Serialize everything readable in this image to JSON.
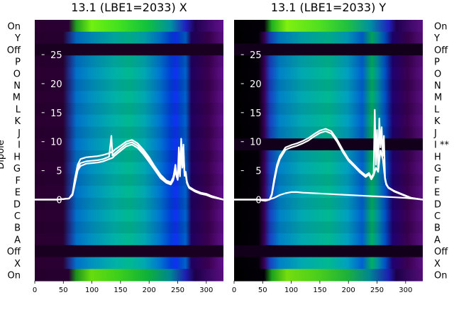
{
  "chart_data": [
    {
      "type": "heatmap",
      "title": "13.1 (LBE1=2033) X",
      "ylabel": "Dipole",
      "xlim": [
        0,
        330
      ],
      "ylim": [
        -14,
        31
      ],
      "x_ticks": [
        "0",
        "50",
        "100",
        "150",
        "200",
        "250",
        "300"
      ],
      "y_ticks": [
        "0",
        "5",
        "10",
        "15",
        "20",
        "25"
      ],
      "y_tick_values": [
        0,
        5,
        10,
        15,
        20,
        25
      ],
      "row_labels": [
        "On",
        "Y",
        "Off",
        "P",
        "O",
        "N",
        "M",
        "L",
        "K",
        "J",
        "I",
        "H",
        "G",
        "F",
        "E",
        "D",
        "C",
        "B",
        "A",
        "Off",
        "X",
        "On"
      ],
      "row_label_side": "left",
      "series": [
        {
          "x": [
            0,
            40,
            60,
            66,
            70,
            75,
            80,
            90,
            100,
            110,
            120,
            130,
            134,
            136,
            140,
            150,
            160,
            170,
            180,
            190,
            200,
            210,
            220,
            230,
            238,
            242,
            246,
            248,
            250,
            252,
            254,
            256,
            258,
            260,
            262,
            264,
            266,
            268,
            270,
            280,
            290,
            300,
            310,
            330
          ],
          "y": [
            0,
            0,
            0.2,
            1,
            3.5,
            6,
            7,
            7.3,
            7.4,
            7.5,
            7.7,
            8,
            8.2,
            8.2,
            8.6,
            9.3,
            10,
            10.3,
            9.7,
            8.6,
            7.3,
            5.7,
            4.3,
            3.3,
            3,
            3.8,
            5.5,
            4.5,
            3.8,
            7.5,
            4.5,
            9.5,
            6,
            8.5,
            4.5,
            4.8,
            3.2,
            2.6,
            2.2,
            1.6,
            1.2,
            1,
            0.6,
            0
          ]
        },
        {
          "x": [
            0,
            40,
            60,
            66,
            70,
            75,
            80,
            90,
            100,
            110,
            120,
            130,
            134,
            136,
            140,
            150,
            160,
            170,
            180,
            190,
            200,
            210,
            220,
            230,
            238,
            242,
            246,
            248,
            250,
            252,
            254,
            256,
            258,
            260,
            262,
            264,
            266,
            268,
            270,
            280,
            290,
            300,
            310,
            330
          ],
          "y": [
            0,
            0,
            0.2,
            1,
            3,
            5.5,
            6.3,
            6.6,
            6.7,
            6.8,
            7,
            7.4,
            11,
            7.6,
            8,
            8.8,
            9.6,
            9.9,
            9.3,
            8.2,
            6.9,
            5.4,
            4,
            3.1,
            2.8,
            3.6,
            6,
            4.2,
            3.6,
            9,
            4.2,
            10.5,
            6.5,
            9.5,
            4.3,
            4.6,
            3,
            2.5,
            2.1,
            1.5,
            1.1,
            0.9,
            0.5,
            0
          ]
        },
        {
          "x": [
            0,
            40,
            60,
            66,
            70,
            75,
            80,
            90,
            100,
            110,
            120,
            130,
            136,
            140,
            150,
            160,
            170,
            180,
            190,
            200,
            210,
            220,
            230,
            238,
            242,
            246,
            248,
            250,
            252,
            254,
            256,
            258,
            260,
            262,
            264,
            266,
            268,
            270,
            280,
            290,
            300,
            310,
            330
          ],
          "y": [
            0,
            0,
            0.2,
            0.8,
            2.6,
            5,
            5.8,
            6.2,
            6.3,
            6.4,
            6.6,
            7,
            7.2,
            7.6,
            8.4,
            9.2,
            9.5,
            8.9,
            7.8,
            6.5,
            5.1,
            3.7,
            2.9,
            2.6,
            3.3,
            5,
            4,
            3.4,
            6.5,
            4,
            8.5,
            5.5,
            7.5,
            4.1,
            4.4,
            2.9,
            2.4,
            2,
            1.4,
            1,
            0.8,
            0.4,
            0
          ]
        }
      ]
    },
    {
      "type": "heatmap",
      "title": "13.1 (LBE1=2033) Y",
      "xlim": [
        0,
        330
      ],
      "ylim": [
        -14,
        31
      ],
      "x_ticks": [
        "0",
        "50",
        "100",
        "150",
        "200",
        "250",
        "300"
      ],
      "y_ticks": [
        "0",
        "5",
        "10",
        "15",
        "20",
        "25"
      ],
      "y_tick_values": [
        0,
        5,
        10,
        15,
        20,
        25
      ],
      "row_labels": [
        "On",
        "Y",
        "Off",
        "P",
        "O",
        "N",
        "M",
        "L",
        "K",
        "J",
        "I **",
        "H",
        "G",
        "F",
        "E",
        "D",
        "C",
        "B",
        "A",
        "Off",
        "X",
        "On"
      ],
      "row_label_side": "right",
      "series": [
        {
          "x": [
            0,
            40,
            55,
            62,
            66,
            70,
            75,
            80,
            90,
            100,
            110,
            120,
            130,
            140,
            150,
            160,
            170,
            180,
            190,
            200,
            210,
            220,
            230,
            236,
            240,
            244,
            246,
            248,
            250,
            252,
            254,
            256,
            258,
            260,
            262,
            264,
            266,
            268,
            270,
            275,
            280,
            290,
            300,
            310,
            330
          ],
          "y": [
            0,
            0,
            -0.2,
            0,
            1,
            3.5,
            6,
            7.5,
            9,
            9.4,
            9.7,
            10.1,
            10.6,
            11.3,
            11.9,
            12.2,
            11.8,
            10.4,
            8.6,
            7,
            6,
            5,
            4.2,
            4.6,
            3.8,
            4.5,
            15.5,
            6,
            12,
            5,
            14,
            9,
            12.5,
            7.5,
            11,
            3.8,
            2.8,
            2.4,
            2.1,
            1.8,
            1.5,
            1.1,
            0.7,
            0.3,
            0
          ]
        },
        {
          "x": [
            0,
            40,
            55,
            62,
            66,
            70,
            75,
            80,
            90,
            100,
            110,
            120,
            130,
            140,
            150,
            160,
            170,
            180,
            190,
            200,
            210,
            220,
            230,
            236,
            240,
            244,
            248,
            252,
            256,
            260,
            264,
            266,
            268,
            270,
            275,
            280,
            290,
            300,
            310,
            330
          ],
          "y": [
            0,
            0,
            -0.2,
            0,
            0.8,
            3,
            5.5,
            7,
            8.6,
            9,
            9.3,
            9.7,
            10.2,
            10.9,
            11.5,
            11.8,
            11.4,
            10,
            8.2,
            6.7,
            5.7,
            4.7,
            3.9,
            4.3,
            3.5,
            4.2,
            5.5,
            4.8,
            8.5,
            7,
            3.5,
            2.6,
            2.3,
            2,
            1.7,
            1.4,
            1,
            0.6,
            0.3,
            0
          ]
        },
        {
          "x": [
            0,
            60,
            70,
            80,
            90,
            100,
            110,
            120,
            140,
            160,
            180,
            200,
            220,
            240,
            260,
            280,
            300,
            320,
            330
          ],
          "y": [
            0,
            0,
            0.3,
            0.8,
            1.1,
            1.3,
            1.3,
            1.2,
            1.1,
            1,
            0.9,
            0.8,
            0.7,
            0.6,
            0.5,
            0.4,
            0.3,
            0.1,
            0
          ]
        }
      ]
    }
  ]
}
